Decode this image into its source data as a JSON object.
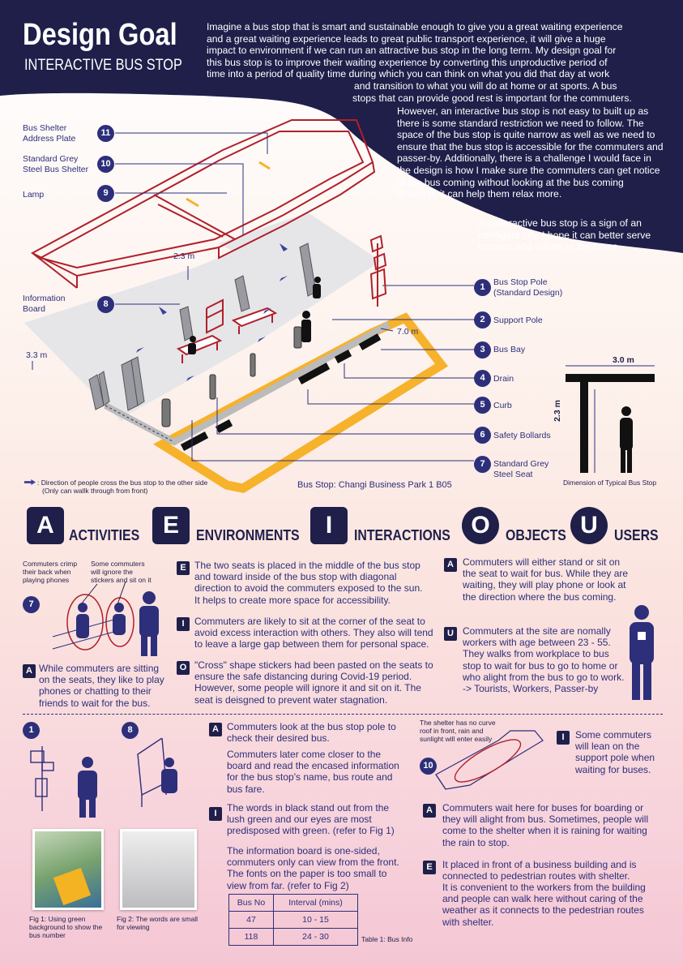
{
  "header": {
    "title": "Design Goal",
    "subtitle": "INTERACTIVE BUS STOP",
    "intro_lines": [
      "Imagine a bus stop that is smart and sustainable enough to give you a great waiting experience",
      "and a great waiting experience leads to great public transport experience, it will give a huge",
      "impact to environment if we can run an attractive bus stop in the long term. My design goal for",
      "this bus stop is to improve their waiting experience by converting this unproductive period of",
      "time into a period of quality time during which you can think on what you did that day at work"
    ],
    "intro_tail": [
      "and transition to what you will do at home or at sports. A bus",
      "stops that can provide good rest is important for the commuters."
    ],
    "para2": "However, an interactive bus stop is not easy to built up as there is some standard restriction we need to follow. The space of the bus stop is quite narrow as well as we need to ensure that the bus stop is accessible for the commuters and passer-by. Additionally, there is a challenge I would face in the design is how I make sure the commuters can get notice of the bus coming without looking at the bus coming direction, it can help them relax more.",
    "para3": "An interactive bus stop is a sign of an intelligent city, I hope it can better serve humans and nature in the future."
  },
  "left_labels": [
    {
      "num": "11",
      "text": "Bus Shelter Address Plate"
    },
    {
      "num": "10",
      "text": "Standard Grey Steel Bus Shelter"
    },
    {
      "num": "9",
      "text": "Lamp"
    },
    {
      "num": "8",
      "text": "Information Board"
    }
  ],
  "right_labels": [
    {
      "num": "1",
      "text": "Bus Stop Pole (Standard Design)"
    },
    {
      "num": "2",
      "text": "Support Pole"
    },
    {
      "num": "3",
      "text": "Bus Bay"
    },
    {
      "num": "4",
      "text": "Drain"
    },
    {
      "num": "5",
      "text": "Curb"
    },
    {
      "num": "6",
      "text": "Safety Bollards"
    },
    {
      "num": "7",
      "text": "Standard Grey Steel Seat"
    }
  ],
  "dims": {
    "d1": "2.3 m",
    "d2": "3.3 m",
    "d3": "7.0 m",
    "d4": "3.0 m",
    "d5": "2.3 m"
  },
  "legend": {
    "line1": ": Direction of people cross the bus stop to the other side",
    "line2": "(Only can wallk through from front)"
  },
  "bus_stop_name": "Bus Stop: Changi Business Park 1 B05",
  "typical_caption": "Dimension of Typical Bus Stop",
  "aeiou": [
    {
      "letter": "A",
      "word": "ACTIVITIES"
    },
    {
      "letter": "E",
      "word": "ENVIRONMENTS"
    },
    {
      "letter": "I",
      "word": "INTERACTIONS"
    },
    {
      "letter": "O",
      "word": "OBJECTS"
    },
    {
      "letter": "U",
      "word": "USERS"
    }
  ],
  "sec1": {
    "num": "7",
    "note_a": "Commuters crimp their back when playing phones",
    "note_b": "Some commuters will ignore the stickers and sit on it",
    "a_text": "While commuters are sitting on the seats, they like to play phones or chatting to their friends to wait for the bus.",
    "e_text": "The two seats is placed in the middle of the bus stop and toward inside of the bus stop with diagonal direction to avoid the commuters exposed to the sun. It helps to create more space for accessibility.",
    "i_text": "Commuters are likely to sit at the corner of the seat to avoid excess interaction with others. They also will tend to leave a large gap between them for personal space.",
    "o_text": "\"Cross\" shape stickers had been pasted on the seats to ensure the safe distancing during Covid-19 period. However, some people will ignore it and sit on it. The seat is deisgned to prevent water stagnation.",
    "a2_text": "Commuters will either stand or sit on the seat to wait for bus. While they are waiting, they will play phone or look at the direction where the bus coming.",
    "u_text": "Commuters at the site are nomally workers with age between 23 - 55. They walks from workplace to bus stop to wait for bus to go to home or who alight from the bus to go to work.",
    "u_tail": "-> Tourists, Workers, Passer-by"
  },
  "sec2": {
    "n1": "1",
    "n8": "8",
    "fig1": "Fig 1: Using green background to show the bus number",
    "fig2": "Fig 2: The words are small for viewing",
    "a_text": "Commuters look at the bus stop pole to check their desired bus.",
    "a_text2": "Commuters later come closer to the board and read the encased information for the bus stop's name, bus route and bus fare.",
    "i_text": "The words in black stand out from the lush green and our eyes are most predisposed with green. (refer to Fig 1)",
    "i_text2": "The information board is one-sided, commuters only can view from the front. The fonts on the paper is too small to view from far. (refer to Fig 2)",
    "table": {
      "headers": [
        "Bus No",
        "Interval (mins)"
      ],
      "rows": [
        [
          "47",
          "10 - 15"
        ],
        [
          "118",
          "24 - 30"
        ]
      ],
      "caption": "Table 1: Bus Info"
    },
    "n10": "10",
    "shelter_note": "The shelter has no curve roof in front, rain and sunlight will enter easily",
    "i_text3": "Some commuters will lean on the support pole when waiting for buses.",
    "a_text3": "Commuters wait here for buses for boarding or they will alight from bus. Sometimes, people will come to the shelter when it is raining for waiting the rain to stop.",
    "e_text": "It placed in front of a business building and is connected to pedestrian routes with shelter.",
    "e_text2": "It is convenient to the workers from the building and people can walk here without caring of the weather as it connects to the pedestrian routes with shelter."
  },
  "colors": {
    "navy": "#1f1f4a",
    "accent": "#2d2f7a",
    "red": "#b0202a",
    "yellow": "#f6b22a"
  }
}
